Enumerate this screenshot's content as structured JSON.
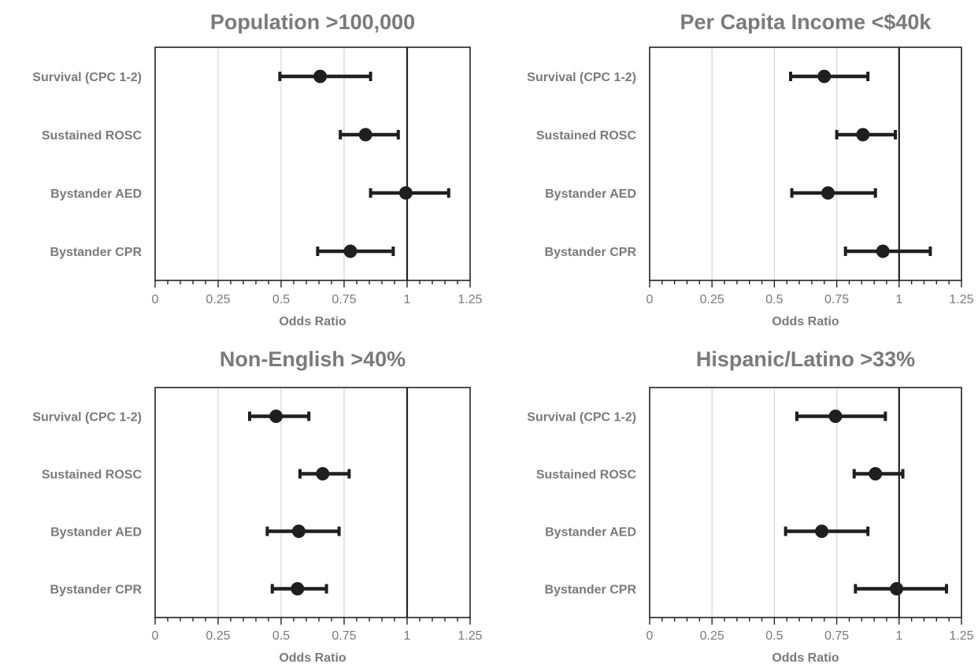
{
  "chart_data": [
    {
      "type": "forest",
      "title": "Population >100,000",
      "xlabel": "Odds Ratio",
      "xlim": [
        0,
        1.25
      ],
      "xticks": [
        "0",
        "0.25",
        "0.5",
        "0.75",
        "1",
        "1.25"
      ],
      "reference_line": 1,
      "grid": true,
      "categories": [
        "Survival (CPC 1-2)",
        "Sustained ROSC",
        "Bystander AED",
        "Bystander CPR"
      ],
      "estimates": [
        0.655,
        0.835,
        0.995,
        0.775
      ],
      "lower": [
        0.495,
        0.735,
        0.855,
        0.645
      ],
      "upper": [
        0.855,
        0.965,
        1.165,
        0.945
      ]
    },
    {
      "type": "forest",
      "title": "Per Capita Income <$40k",
      "xlabel": "Odds Ratio",
      "xlim": [
        0,
        1.25
      ],
      "xticks": [
        "0",
        "0.25",
        "0.5",
        "0.75",
        "1",
        "1.25"
      ],
      "reference_line": 1,
      "grid": true,
      "categories": [
        "Survival (CPC 1-2)",
        "Sustained ROSC",
        "Bystander AED",
        "Bystander CPR"
      ],
      "estimates": [
        0.7,
        0.855,
        0.715,
        0.935
      ],
      "lower": [
        0.565,
        0.75,
        0.57,
        0.785
      ],
      "upper": [
        0.875,
        0.985,
        0.905,
        1.125
      ]
    },
    {
      "type": "forest",
      "title": "Non-English >40%",
      "xlabel": "Odds Ratio",
      "xlim": [
        0,
        1.25
      ],
      "xticks": [
        "0",
        "0.25",
        "0.5",
        "0.75",
        "1",
        "1.25"
      ],
      "reference_line": 1,
      "grid": true,
      "categories": [
        "Survival (CPC 1-2)",
        "Sustained ROSC",
        "Bystander AED",
        "Bystander CPR"
      ],
      "estimates": [
        0.48,
        0.665,
        0.57,
        0.565
      ],
      "lower": [
        0.375,
        0.575,
        0.445,
        0.465
      ],
      "upper": [
        0.61,
        0.77,
        0.73,
        0.68
      ]
    },
    {
      "type": "forest",
      "title": "Hispanic/Latino >33%",
      "xlabel": "Odds Ratio",
      "xlim": [
        0,
        1.25
      ],
      "xticks": [
        "0",
        "0.25",
        "0.5",
        "0.75",
        "1",
        "1.25"
      ],
      "reference_line": 1,
      "grid": true,
      "categories": [
        "Survival (CPC 1-2)",
        "Sustained ROSC",
        "Bystander AED",
        "Bystander CPR"
      ],
      "estimates": [
        0.745,
        0.905,
        0.69,
        0.99
      ],
      "lower": [
        0.59,
        0.82,
        0.545,
        0.825
      ],
      "upper": [
        0.945,
        1.015,
        0.875,
        1.19
      ]
    }
  ]
}
